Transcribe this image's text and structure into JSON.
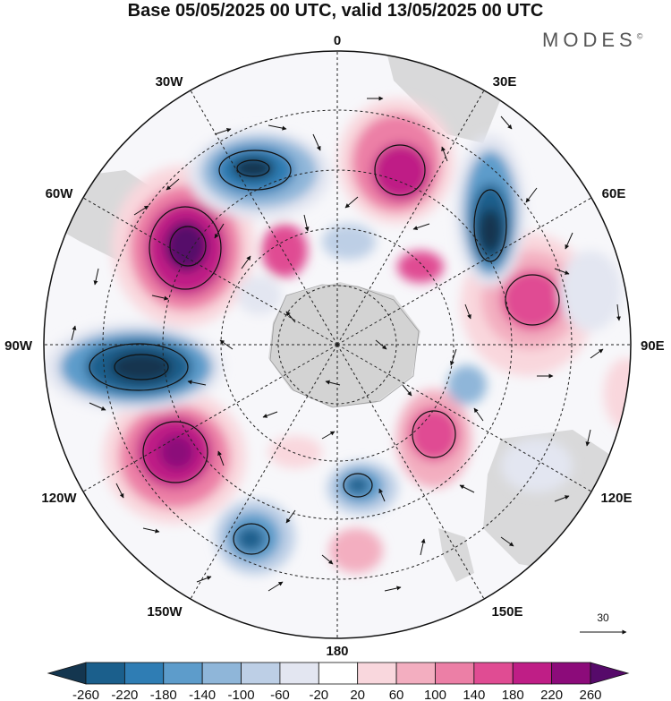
{
  "title": "Base 05/05/2025 00 UTC, valid 13/05/2025 00 UTC",
  "brand": "MODES",
  "brand_mark": "©",
  "longitude_labels": [
    "0",
    "30E",
    "60E",
    "90E",
    "120E",
    "150E",
    "180",
    "150W",
    "120W",
    "90W",
    "60W",
    "30W"
  ],
  "vector_reference": "30",
  "colorbar": {
    "ticks": [
      "-260",
      "-220",
      "-180",
      "-140",
      "-100",
      "-60",
      "-20",
      "20",
      "60",
      "100",
      "140",
      "180",
      "220",
      "260"
    ],
    "colors": [
      "#14364f",
      "#1b5f8c",
      "#2f7db4",
      "#5d9ccb",
      "#8fb6d9",
      "#bdcfe6",
      "#e3e6f1",
      "#ffffff",
      "#f9d7dd",
      "#f3aec0",
      "#ec7fa6",
      "#e04c93",
      "#bf1e86",
      "#8c0b7a",
      "#560a6a"
    ]
  },
  "colors": {
    "land": "#cfcfcf",
    "coast": "#666666",
    "grid": "#222222"
  }
}
